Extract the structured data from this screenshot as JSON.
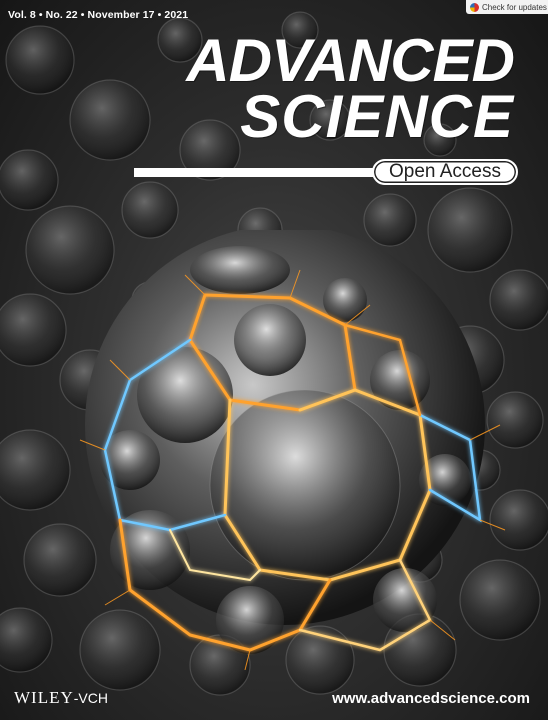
{
  "header": {
    "issue_line": "Vol. 8 • No. 22 • November 17 • 2021",
    "check_updates": "Check for updates"
  },
  "masthead": {
    "title_line1": "ADVANCED",
    "title_line2": "SCIENCE",
    "badge": "Open Access"
  },
  "footer": {
    "publisher_main": "WILEY",
    "publisher_suffix": "-VCH",
    "website": "www.advancedscience.com"
  },
  "colors": {
    "background": "#2e2e2e",
    "text": "#ffffff",
    "glow_orange": "#ffa22e",
    "glow_blue": "#6fc8ff"
  },
  "icons": {
    "check_updates": "crossmark-icon"
  }
}
